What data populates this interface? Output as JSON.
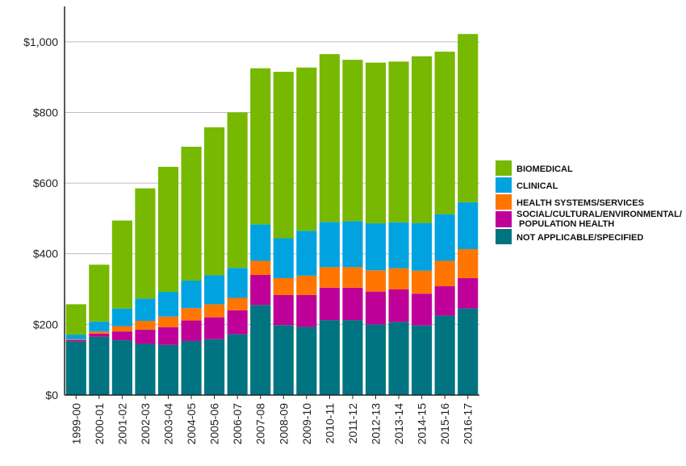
{
  "chart_data": {
    "type": "bar",
    "stacked": true,
    "title": "",
    "xlabel": "",
    "ylabel": "",
    "ylim": [
      0,
      1100
    ],
    "yticks": [
      0,
      200,
      400,
      600,
      800,
      1000
    ],
    "ytick_labels": [
      "$0",
      "$200",
      "$400",
      "$600",
      "$800",
      "$1,000"
    ],
    "grid": "horizontal",
    "legend_position": "right",
    "categories": [
      "1999-00",
      "2000-01",
      "2001-02",
      "2002-03",
      "2003-04",
      "2004-05",
      "2005-06",
      "2006-07",
      "2007-08",
      "2008-09",
      "2009-10",
      "2010-11",
      "2011-12",
      "2012-13",
      "2013-14",
      "2014-15",
      "2015-16",
      "2016-17"
    ],
    "series": [
      {
        "name": "NOT APPLICABLE/SPECIFIED",
        "color": "#007480",
        "values": [
          152,
          165,
          155,
          145,
          142,
          153,
          158,
          172,
          255,
          198,
          193,
          212,
          212,
          200,
          207,
          197,
          225,
          245
        ]
      },
      {
        "name": "SOCIAL/CULTURAL/ENVIRONMENTAL/ POPULATION HEALTH",
        "color": "#BF0199",
        "values": [
          4,
          9,
          25,
          40,
          50,
          58,
          62,
          68,
          85,
          85,
          90,
          92,
          92,
          93,
          92,
          90,
          83,
          86
        ]
      },
      {
        "name": "HEALTH SYSTEMS/SERVICES",
        "color": "#FF7500",
        "values": [
          2,
          6,
          15,
          25,
          30,
          35,
          37,
          35,
          40,
          48,
          55,
          58,
          58,
          60,
          60,
          65,
          72,
          82
        ]
      },
      {
        "name": "CLINICAL",
        "color": "#00A3E0",
        "values": [
          13,
          28,
          50,
          63,
          70,
          78,
          82,
          85,
          103,
          113,
          127,
          128,
          130,
          133,
          130,
          135,
          132,
          133
        ]
      },
      {
        "name": "BIOMEDICAL",
        "color": "#77B800",
        "values": [
          86,
          161,
          249,
          312,
          354,
          379,
          419,
          440,
          442,
          471,
          462,
          475,
          457,
          455,
          455,
          472,
          460,
          476
        ]
      }
    ],
    "legend_order": [
      "BIOMEDICAL",
      "CLINICAL",
      "HEALTH SYSTEMS/SERVICES",
      "SOCIAL/CULTURAL/ENVIRONMENTAL/ POPULATION HEALTH",
      "NOT APPLICABLE/SPECIFIED"
    ]
  }
}
